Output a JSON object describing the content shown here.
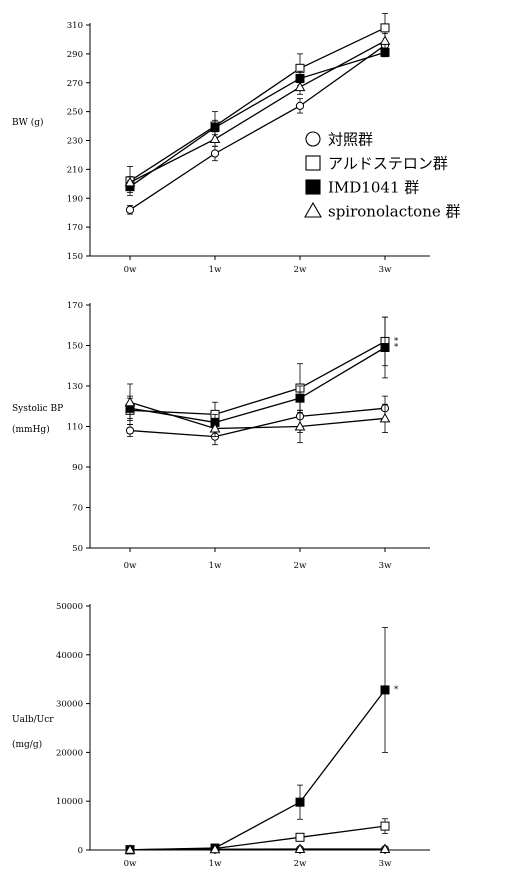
{
  "series_names": [
    "対照群",
    "アルドステロン群",
    "IMD1041 群",
    "spironolactone 群"
  ],
  "series_markers": [
    "open-circle",
    "open-square",
    "filled-square",
    "open-triangle"
  ],
  "colors": {
    "line": "#000000",
    "background": "#ffffff"
  },
  "chart_data": [
    {
      "type": "line",
      "ylabel": "BW (g)",
      "ylabel_unit": "",
      "ylim": [
        150,
        310
      ],
      "yticks": [
        150,
        170,
        190,
        210,
        230,
        250,
        270,
        290,
        310
      ],
      "categories": [
        "0w",
        "1w",
        "2w",
        "3w"
      ],
      "legend": "inside right",
      "series": [
        {
          "name": "対照群",
          "values": [
            182,
            221,
            254,
            296
          ],
          "errors": [
            3,
            5,
            5,
            3
          ]
        },
        {
          "name": "アルドステロン群",
          "values": [
            202,
            240,
            280,
            308
          ],
          "errors": [
            10,
            10,
            10,
            10
          ]
        },
        {
          "name": "IMD1041 群",
          "values": [
            198,
            239,
            273,
            291
          ],
          "errors": [
            4,
            5,
            5,
            3
          ]
        },
        {
          "name": "spironolactone 群",
          "values": [
            201,
            231,
            267,
            299
          ],
          "errors": [
            4,
            5,
            5,
            5
          ]
        }
      ],
      "annotations": []
    },
    {
      "type": "line",
      "ylabel": "Systolic BP",
      "ylabel_unit": "(mmHg)",
      "ylim": [
        50,
        170
      ],
      "yticks": [
        50,
        70,
        90,
        110,
        130,
        150,
        170
      ],
      "categories": [
        "0w",
        "1w",
        "2w",
        "3w"
      ],
      "series": [
        {
          "name": "対照群",
          "values": [
            108,
            105,
            115,
            119
          ],
          "errors": [
            3,
            4,
            8,
            6
          ]
        },
        {
          "name": "アルドステロン群",
          "values": [
            118,
            116,
            129,
            152
          ],
          "errors": [
            7,
            6,
            12,
            12
          ]
        },
        {
          "name": "IMD1041 群",
          "values": [
            119,
            112,
            124,
            149
          ],
          "errors": [
            5,
            4,
            6,
            15
          ]
        },
        {
          "name": "spironolactone 群",
          "values": [
            122,
            109,
            110,
            114
          ],
          "errors": [
            9,
            4,
            8,
            7
          ]
        }
      ],
      "annotations": [
        {
          "series": "アルドステロン群",
          "x": "3w",
          "text": "*"
        },
        {
          "series": "IMD1041 群",
          "x": "3w",
          "text": "*"
        }
      ]
    },
    {
      "type": "line",
      "ylabel": "Ualb/Ucr",
      "ylabel_unit": "(mg/g)",
      "ylim": [
        0,
        50000
      ],
      "yticks": [
        0,
        10000,
        20000,
        30000,
        40000,
        50000
      ],
      "categories": [
        "0w",
        "1w",
        "2w",
        "3w"
      ],
      "series": [
        {
          "name": "対照群",
          "values": [
            50,
            100,
            150,
            150
          ],
          "errors": [
            0,
            0,
            0,
            0
          ]
        },
        {
          "name": "アルドステロン群",
          "values": [
            50,
            300,
            2600,
            4900
          ],
          "errors": [
            0,
            0,
            600,
            1500
          ]
        },
        {
          "name": "IMD1041 群",
          "values": [
            50,
            400,
            9800,
            32800
          ],
          "errors": [
            0,
            0,
            3500,
            12800
          ]
        },
        {
          "name": "spironolactone 群",
          "values": [
            50,
            150,
            200,
            200
          ],
          "errors": [
            0,
            0,
            0,
            0
          ]
        }
      ],
      "annotations": [
        {
          "series": "IMD1041 群",
          "x": "3w",
          "text": "*"
        }
      ]
    }
  ]
}
